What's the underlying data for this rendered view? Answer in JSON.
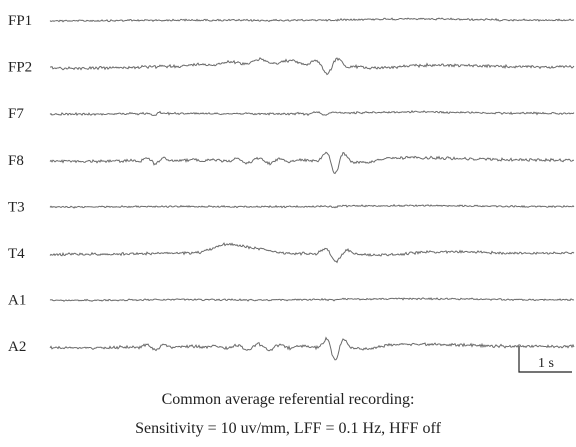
{
  "chart_data": {
    "type": "line",
    "channels": [
      {
        "name": "FP1",
        "pattern": "flat",
        "amplitude": 0.5
      },
      {
        "name": "FP2",
        "pattern": "burst_wide",
        "amplitude": 1.0
      },
      {
        "name": "F7",
        "pattern": "flat_spike",
        "amplitude": 0.6
      },
      {
        "name": "F8",
        "pattern": "burst_sharp",
        "amplitude": 1.0
      },
      {
        "name": "T3",
        "pattern": "flat",
        "amplitude": 0.4
      },
      {
        "name": "T4",
        "pattern": "burst_slow",
        "amplitude": 0.9
      },
      {
        "name": "A1",
        "pattern": "flat",
        "amplitude": 0.45
      },
      {
        "name": "A2",
        "pattern": "burst_sharp",
        "amplitude": 1.0
      }
    ],
    "scale_bar": {
      "label": "1 s",
      "duration_s": 1
    },
    "trace_color": "#6a6a6a"
  },
  "caption": {
    "line1": "Common average referential recording:",
    "line2": "Sensitivity = 10 uv/mm, LFF = 0.1 Hz, HFF off"
  }
}
